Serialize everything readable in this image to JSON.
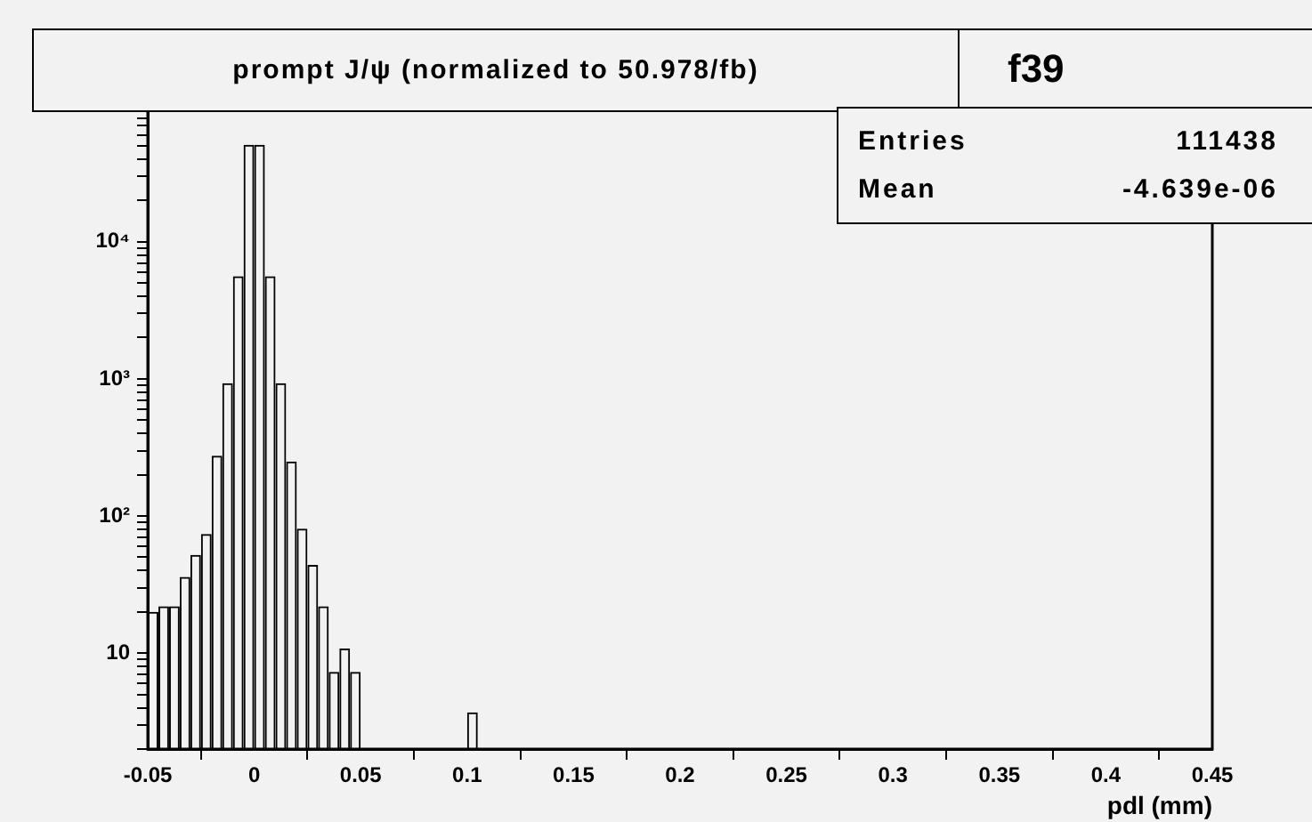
{
  "chart_data": {
    "type": "histogram",
    "title": "prompt J/ψ (normalized to 50.978/fb)",
    "subtitle": "f39",
    "xlabel": "pdl (mm)",
    "annotations": [
      "Entries",
      "111438",
      "Mean",
      "-4.639e-06"
    ],
    "bins": [
      -0.05,
      -0.045,
      -0.04,
      -0.035,
      -0.03,
      -0.025,
      -0.02,
      -0.015,
      -0.01,
      -0.005,
      0,
      0.005,
      0.01,
      0.015,
      0.02,
      0.025,
      0.03,
      0.035,
      0.04,
      0.045,
      0.05,
      0.055,
      0.06,
      0.065,
      0.07,
      0.075,
      0.08,
      0.085,
      0.09,
      0.095,
      0.1,
      0.105,
      0.11
    ],
    "values": [
      20,
      22,
      22,
      36,
      52,
      74,
      275,
      930,
      5600,
      51000,
      51000,
      5600,
      930,
      250,
      81,
      44,
      22,
      7.3,
      10.8,
      7.3,
      null,
      null,
      null,
      null,
      null,
      null,
      null,
      null,
      null,
      null,
      3.7,
      null
    ],
    "color": "#000000",
    "log": "y",
    "legend": false,
    "xlim": [
      -0.05,
      0.45
    ],
    "xticks": [
      -0.05,
      0,
      0.05,
      0.1,
      0.15,
      0.2,
      0.25,
      0.3,
      0.35,
      0.4,
      0.45
    ],
    "ylim": [
      2,
      130000
    ],
    "yticks": [
      {
        "value": 2,
        "label": null
      },
      {
        "value": 3,
        "label": null
      },
      {
        "value": 4,
        "label": null
      },
      {
        "value": 5,
        "label": null
      },
      {
        "value": 6,
        "label": null
      },
      {
        "value": 7,
        "label": null
      },
      {
        "value": 8,
        "label": null
      },
      {
        "value": 9,
        "label": null
      },
      10,
      {
        "value": 20,
        "label": null
      },
      {
        "value": 30,
        "label": null
      },
      {
        "value": 40,
        "label": null
      },
      {
        "value": 50,
        "label": null
      },
      {
        "value": 60,
        "label": null
      },
      {
        "value": 70,
        "label": null
      },
      {
        "value": 80,
        "label": null
      },
      {
        "value": 90,
        "label": null
      },
      {
        "value": 100,
        "label": "10²"
      },
      {
        "value": 200,
        "label": null
      },
      {
        "value": 300,
        "label": null
      },
      {
        "value": 400,
        "label": null
      },
      {
        "value": 500,
        "label": null
      },
      {
        "value": 600,
        "label": null
      },
      {
        "value": 700,
        "label": null
      },
      {
        "value": 800,
        "label": null
      },
      {
        "value": 900,
        "label": null
      },
      {
        "value": 1000,
        "label": "10³"
      },
      {
        "value": 2000,
        "label": null
      },
      {
        "value": 3000,
        "label": null
      },
      {
        "value": 4000,
        "label": null
      },
      {
        "value": 5000,
        "label": null
      },
      {
        "value": 6000,
        "label": null
      },
      {
        "value": 7000,
        "label": null
      },
      {
        "value": 8000,
        "label": null
      },
      {
        "value": 9000,
        "label": null
      },
      {
        "value": 10000,
        "label": "10⁴"
      },
      {
        "value": 20000,
        "label": null
      },
      {
        "value": 30000,
        "label": null
      },
      {
        "value": 40000,
        "label": null
      },
      {
        "value": 50000,
        "label": null
      },
      {
        "value": 60000,
        "label": null
      },
      {
        "value": 70000,
        "label": null
      },
      {
        "value": 80000,
        "label": null
      },
      {
        "value": 90000,
        "label": null
      },
      {
        "value": 100000,
        "label": null
      }
    ]
  }
}
